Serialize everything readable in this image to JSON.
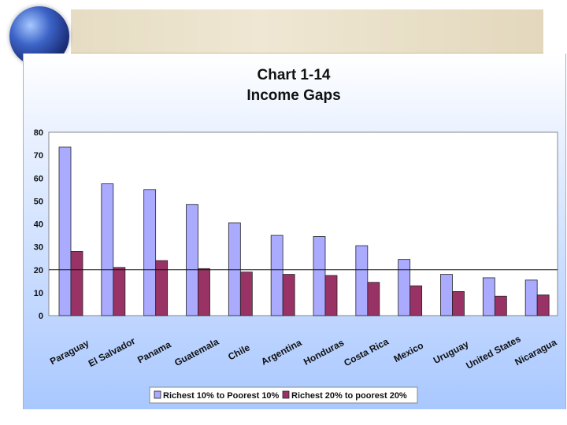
{
  "chart_data": {
    "type": "bar",
    "title": "Chart 1-14",
    "subtitle": "Income Gaps",
    "categories": [
      "Paraguay",
      "El Salvador",
      "Panama",
      "Guatemala",
      "Chile",
      "Argentina",
      "Honduras",
      "Costa Rica",
      "Mexico",
      "Uruguay",
      "United States",
      "Nicaragua"
    ],
    "series": [
      {
        "name": "Richest 10% to Poorest 10%",
        "color": "#aaaaff",
        "values": [
          73.5,
          57.5,
          55,
          48.5,
          40.5,
          35,
          34.5,
          30.5,
          24.5,
          18,
          16.5,
          15.5
        ]
      },
      {
        "name": "Richest 20% to poorest 20%",
        "color": "#993366",
        "values": [
          28,
          21,
          24,
          20.5,
          19,
          18,
          17.5,
          14.5,
          13,
          10.5,
          8.5,
          9
        ]
      }
    ],
    "yticks": [
      0,
      10,
      20,
      30,
      40,
      50,
      60,
      70,
      80
    ],
    "ylim": [
      0,
      80
    ],
    "grid": false,
    "legend_position": "bottom"
  }
}
